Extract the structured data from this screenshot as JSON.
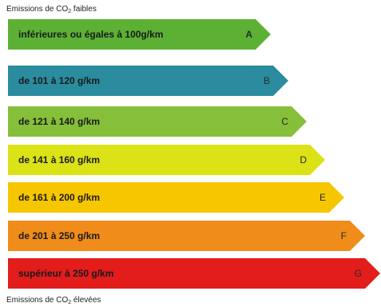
{
  "captions": {
    "top_prefix": "Emissions de CO",
    "top_sub": "2",
    "top_suffix": " faibles",
    "bottom_prefix": "Emissions de CO",
    "bottom_sub": "2",
    "bottom_suffix": " élevées"
  },
  "bands": [
    {
      "letter": "A",
      "label": "inférieures ou égales à 100g/km",
      "color": "#5cb135"
    },
    {
      "letter": "B",
      "label": "de 101 à 120 g/km",
      "color": "#2a8c9e"
    },
    {
      "letter": "C",
      "label": "de 121 à 140 g/km",
      "color": "#86bf3a"
    },
    {
      "letter": "D",
      "label": "de 141 à 160 g/km",
      "color": "#dbe216"
    },
    {
      "letter": "E",
      "label": "de 161 à 200 g/km",
      "color": "#f6c700"
    },
    {
      "letter": "F",
      "label": "de 201 à 250 g/km",
      "color": "#f08c1a"
    },
    {
      "letter": "G",
      "label": "supérieur à 250 g/km",
      "color": "#e31c1c"
    }
  ]
}
